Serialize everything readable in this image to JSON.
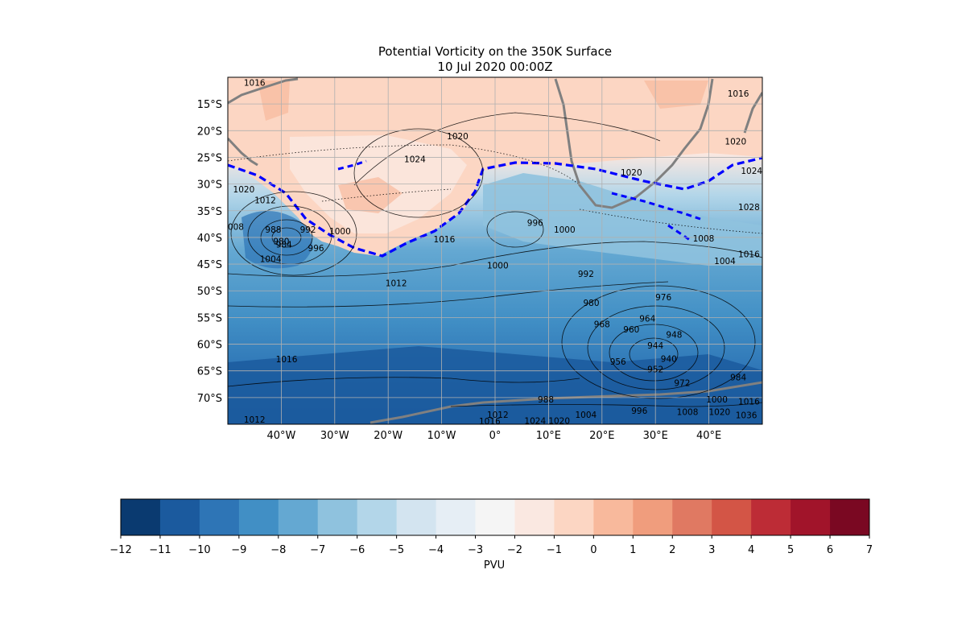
{
  "title": {
    "line1": "Potential Vorticity on the 350K Surface",
    "line2": "10 Jul 2020 00:00Z"
  },
  "map": {
    "lon_range": [
      -50,
      50
    ],
    "lat_range": [
      -75,
      -10
    ],
    "lat_ticks": [
      {
        "value": -15,
        "label": "15°S"
      },
      {
        "value": -20,
        "label": "20°S"
      },
      {
        "value": -25,
        "label": "25°S"
      },
      {
        "value": -30,
        "label": "30°S"
      },
      {
        "value": -35,
        "label": "35°S"
      },
      {
        "value": -40,
        "label": "40°S"
      },
      {
        "value": -45,
        "label": "45°S"
      },
      {
        "value": -50,
        "label": "50°S"
      },
      {
        "value": -55,
        "label": "55°S"
      },
      {
        "value": -60,
        "label": "60°S"
      },
      {
        "value": -65,
        "label": "65°S"
      },
      {
        "value": -70,
        "label": "70°S"
      }
    ],
    "lon_ticks": [
      {
        "value": -40,
        "label": "40°W"
      },
      {
        "value": -30,
        "label": "30°W"
      },
      {
        "value": -20,
        "label": "20°W"
      },
      {
        "value": -10,
        "label": "10°W"
      },
      {
        "value": 0,
        "label": "0°"
      },
      {
        "value": 10,
        "label": "10°E"
      },
      {
        "value": 20,
        "label": "20°E"
      },
      {
        "value": 30,
        "label": "30°E"
      },
      {
        "value": 40,
        "label": "40°E"
      }
    ],
    "grid": true,
    "pressure_contour_labels": [
      {
        "text": "1016",
        "lon": -45,
        "lat": -11
      },
      {
        "text": "1024",
        "lon": -15,
        "lat": -25.3
      },
      {
        "text": "1020",
        "lon": -7,
        "lat": -21
      },
      {
        "text": "1020",
        "lon": -47,
        "lat": -31
      },
      {
        "text": "1012",
        "lon": -43,
        "lat": -33
      },
      {
        "text": "1008",
        "lon": -49,
        "lat": -38
      },
      {
        "text": "988",
        "lon": -41.5,
        "lat": -38.5
      },
      {
        "text": "992",
        "lon": -35,
        "lat": -38.5
      },
      {
        "text": "980",
        "lon": -40,
        "lat": -40.7
      },
      {
        "text": "984",
        "lon": -39.5,
        "lat": -41.3
      },
      {
        "text": "1000",
        "lon": -29,
        "lat": -38.8
      },
      {
        "text": "996",
        "lon": -33.5,
        "lat": -42
      },
      {
        "text": "1004",
        "lon": -42,
        "lat": -44
      },
      {
        "text": "1016",
        "lon": -9.5,
        "lat": -40.3
      },
      {
        "text": "996",
        "lon": 7.5,
        "lat": -37.2
      },
      {
        "text": "1000",
        "lon": 13,
        "lat": -38.5
      },
      {
        "text": "1000",
        "lon": 0.5,
        "lat": -45.2
      },
      {
        "text": "1012",
        "lon": -18.5,
        "lat": -48.5
      },
      {
        "text": "992",
        "lon": 17,
        "lat": -46.8
      },
      {
        "text": "980",
        "lon": 18,
        "lat": -52.2
      },
      {
        "text": "976",
        "lon": 31.5,
        "lat": -51.2
      },
      {
        "text": "968",
        "lon": 20,
        "lat": -56.2
      },
      {
        "text": "964",
        "lon": 28.5,
        "lat": -55.2
      },
      {
        "text": "960",
        "lon": 25.5,
        "lat": -57.2
      },
      {
        "text": "948",
        "lon": 33.5,
        "lat": -58.2
      },
      {
        "text": "944",
        "lon": 30,
        "lat": -60.2
      },
      {
        "text": "940",
        "lon": 32.5,
        "lat": -62.7
      },
      {
        "text": "956",
        "lon": 23,
        "lat": -63.2
      },
      {
        "text": "952",
        "lon": 30,
        "lat": -64.7
      },
      {
        "text": "972",
        "lon": 35,
        "lat": -67.2
      },
      {
        "text": "984",
        "lon": 45.5,
        "lat": -66.2
      },
      {
        "text": "1016",
        "lon": -39,
        "lat": -62.8
      },
      {
        "text": "988",
        "lon": 9.5,
        "lat": -70.3
      },
      {
        "text": "1012",
        "lon": 0.5,
        "lat": -73.2
      },
      {
        "text": "1004",
        "lon": 17,
        "lat": -73.2
      },
      {
        "text": "996",
        "lon": 27,
        "lat": -72.4
      },
      {
        "text": "1008",
        "lon": 36,
        "lat": -72.7
      },
      {
        "text": "1000",
        "lon": 41.5,
        "lat": -70.3
      },
      {
        "text": "1016",
        "lon": 47.5,
        "lat": -70.7
      },
      {
        "text": "1020",
        "lon": 42,
        "lat": -72.7
      },
      {
        "text": "1024",
        "lon": 7.5,
        "lat": -74.3
      },
      {
        "text": "1020",
        "lon": 12,
        "lat": -74.3
      },
      {
        "text": "1016",
        "lon": -1,
        "lat": -74.4
      },
      {
        "text": "1012",
        "lon": -45,
        "lat": -74.1
      },
      {
        "text": "1036",
        "lon": 47,
        "lat": -73.3
      },
      {
        "text": "1020",
        "lon": 25.5,
        "lat": -27.8
      },
      {
        "text": "1020",
        "lon": 45,
        "lat": -22
      },
      {
        "text": "1016",
        "lon": 45.5,
        "lat": -13
      },
      {
        "text": "1008",
        "lon": 39,
        "lat": -40.2
      },
      {
        "text": "1004",
        "lon": 43,
        "lat": -44.4
      },
      {
        "text": "1016",
        "lon": 47.5,
        "lat": -43.1
      },
      {
        "text": "1028",
        "lon": 47.5,
        "lat": -34.3
      },
      {
        "text": "1024",
        "lon": 48,
        "lat": -27.5
      }
    ]
  },
  "colorbar": {
    "label": "PVU",
    "levels": [
      -12,
      -11,
      -10,
      -9,
      -8,
      -7,
      -6,
      -5,
      -4,
      -3,
      -2,
      -1,
      0,
      1,
      2,
      3,
      4,
      5,
      6,
      7
    ],
    "tick_labels": [
      "−12",
      "−11",
      "−10",
      "−9",
      "−8",
      "−7",
      "−6",
      "−5",
      "−4",
      "−3",
      "−2",
      "−1",
      "0",
      "1",
      "2",
      "3",
      "4",
      "5",
      "6",
      "7"
    ],
    "colors": [
      "#0a3a70",
      "#1b5a9e",
      "#2e75b6",
      "#418fc5",
      "#64a8d2",
      "#8fc2de",
      "#b3d6e9",
      "#d3e4f0",
      "#e6eef5",
      "#f5f5f5",
      "#fae8e1",
      "#fcd6c3",
      "#f8b99c",
      "#f09d7d",
      "#e07962",
      "#d35546",
      "#bd2c36",
      "#a1142a",
      "#7a0822"
    ]
  },
  "colors": {
    "pv_2_contour": "#0000ff",
    "coastline": "#808080",
    "pressure_contour": "#000000",
    "grid": "#b0b0b0"
  }
}
